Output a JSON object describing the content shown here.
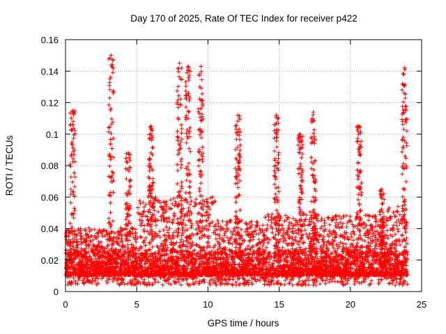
{
  "chart_data": {
    "type": "scatter",
    "title": "Day 170 of 2025, Rate Of TEC Index for receiver p422",
    "xlabel": "GPS time / hours",
    "ylabel": "ROTI / TECUs",
    "xlim": [
      0,
      25
    ],
    "ylim": [
      0,
      0.16
    ],
    "xticks": [
      0,
      5,
      10,
      15,
      20,
      25
    ],
    "yticks": [
      0,
      0.02,
      0.04,
      0.06,
      0.08,
      0.1,
      0.12,
      0.14,
      0.16
    ],
    "xtick_labels": [
      "0",
      "5",
      "10",
      "15",
      "20",
      "25"
    ],
    "ytick_labels": [
      "0",
      "0.02",
      "0.04",
      "0.06",
      "0.08",
      "0.1",
      "0.12",
      "0.14",
      "0.16"
    ],
    "grid": true,
    "marker": "+",
    "color": "#ff0000",
    "x_range_hours": [
      0,
      24
    ],
    "background_level": 0.015,
    "spikes": [
      {
        "x": 0.5,
        "y": 0.115
      },
      {
        "x": 3.2,
        "y": 0.15
      },
      {
        "x": 4.4,
        "y": 0.088
      },
      {
        "x": 6.0,
        "y": 0.105
      },
      {
        "x": 8.0,
        "y": 0.145
      },
      {
        "x": 8.6,
        "y": 0.143
      },
      {
        "x": 9.5,
        "y": 0.143
      },
      {
        "x": 12.1,
        "y": 0.112
      },
      {
        "x": 14.8,
        "y": 0.112
      },
      {
        "x": 16.5,
        "y": 0.1
      },
      {
        "x": 17.4,
        "y": 0.114
      },
      {
        "x": 20.6,
        "y": 0.105
      },
      {
        "x": 22.2,
        "y": 0.065
      },
      {
        "x": 23.8,
        "y": 0.142
      }
    ]
  }
}
